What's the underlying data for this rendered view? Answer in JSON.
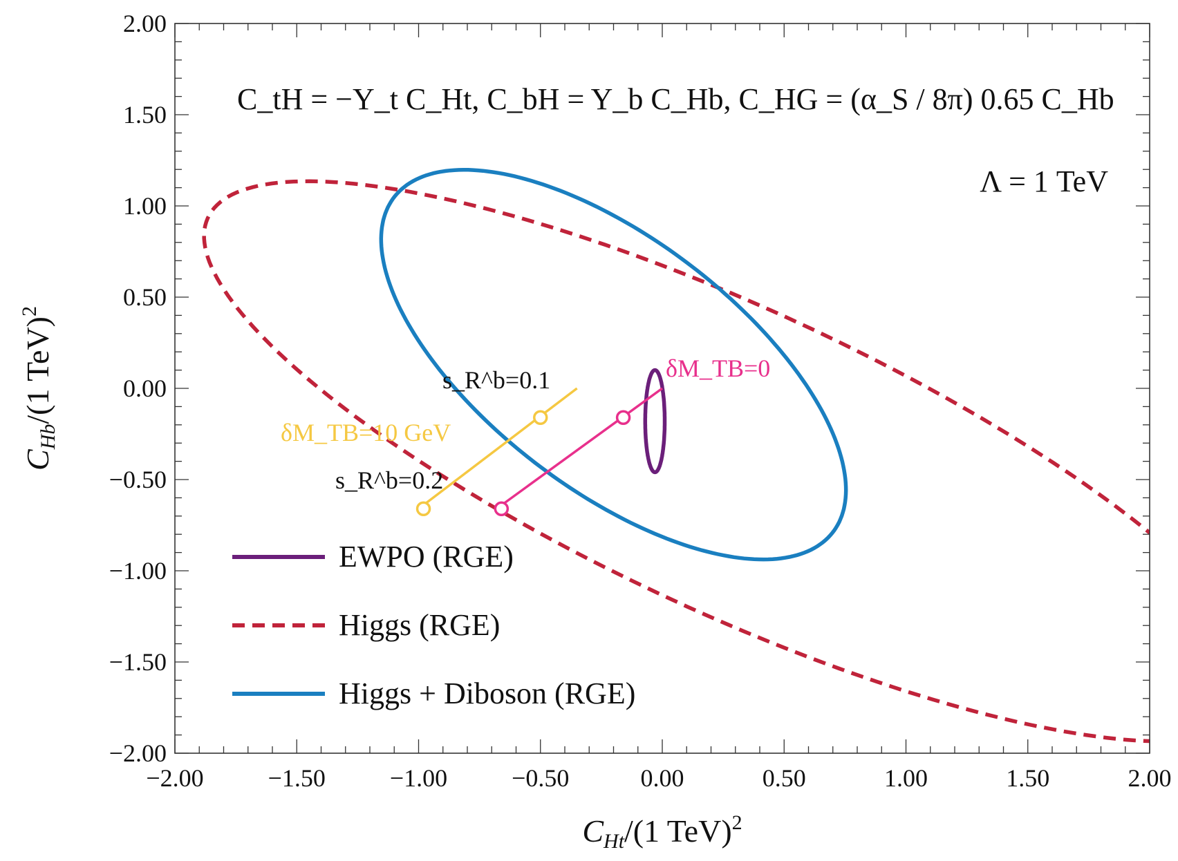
{
  "chart_data": {
    "type": "line",
    "xlabel": "C_Ht/(1 TeV)^2",
    "ylabel": "C_Hb/(1 TeV)^2",
    "xlim": [
      -2.0,
      2.0
    ],
    "ylim": [
      -2.0,
      2.0
    ],
    "xticks": [
      "−2.00",
      "−1.50",
      "−1.00",
      "−0.50",
      "0.00",
      "0.50",
      "1.00",
      "1.50",
      "2.00"
    ],
    "yticks": [
      "−2.00",
      "−1.50",
      "−1.00",
      "−0.50",
      "0.00",
      "0.50",
      "1.00",
      "1.50",
      "2.00"
    ],
    "grid": false,
    "legend_position": "bottom-left",
    "annotations": {
      "relation": "C_tH = −Y_t C_Ht,  C_bH = Y_b C_Hb,  C_HG = (α_S / 8π) 0.65 C_Hb",
      "scale": "Λ = 1 TeV",
      "dm0": "δM_TB=0",
      "dm10": "δM_TB=10 GeV",
      "sr01": "s_R^b=0.1",
      "sr02": "s_R^b=0.2"
    },
    "series": [
      {
        "name": "EWPO (RGE)",
        "color": "#6b1f7a",
        "style": "solid",
        "shape": "ellipse",
        "center": [
          -0.03,
          -0.18
        ],
        "semi_axes": [
          0.04,
          0.28
        ],
        "angle_deg": 0
      },
      {
        "name": "Higgs (RGE)",
        "color": "#c0233a",
        "style": "dashed",
        "shape": "ellipse",
        "center": [
          0.3,
          -0.4
        ],
        "semi_axes": [
          2.55,
          0.78
        ],
        "angle_deg": -33
      },
      {
        "name": "Higgs + Diboson (RGE)",
        "color": "#1a7fc0",
        "style": "solid",
        "shape": "ellipse",
        "center": [
          -0.2,
          0.13
        ],
        "semi_axes": [
          1.3,
          0.6
        ],
        "angle_deg": -50
      }
    ],
    "lines": [
      {
        "label": "δM_TB=10 GeV",
        "color": "#f5c842",
        "x": [
          -0.35,
          -1.0
        ],
        "y": [
          0.0,
          -0.66
        ],
        "markers": [
          {
            "x": -0.5,
            "y": -0.16
          },
          {
            "x": -0.98,
            "y": -0.66
          }
        ]
      },
      {
        "label": "δM_TB=0",
        "color": "#e8308c",
        "x": [
          0.0,
          -0.68
        ],
        "y": [
          0.0,
          -0.66
        ],
        "markers": [
          {
            "x": -0.16,
            "y": -0.16
          },
          {
            "x": -0.66,
            "y": -0.66
          }
        ]
      }
    ]
  }
}
